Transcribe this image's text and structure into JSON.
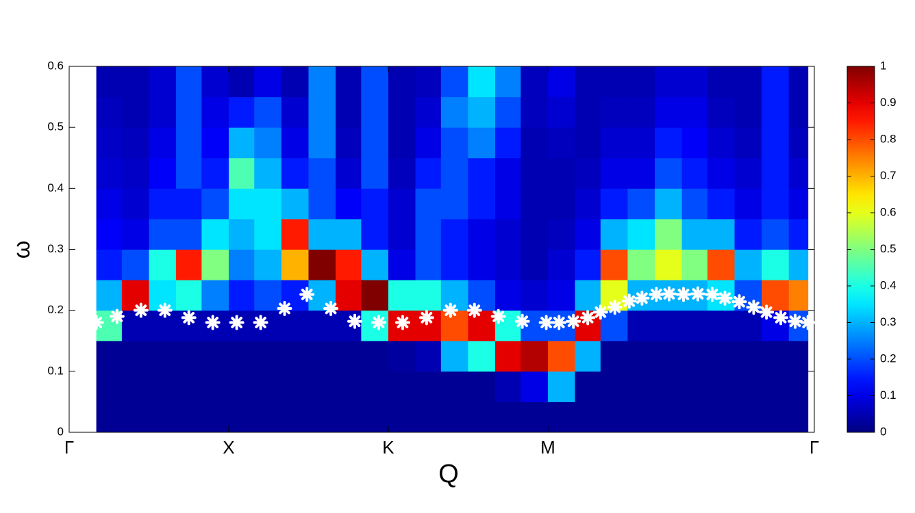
{
  "chart_data": {
    "type": "heatmap",
    "xlabel": "Q",
    "ylabel": "ω",
    "xlim": [
      0,
      4.67
    ],
    "xticks": [
      {
        "value": 0,
        "label": "Γ"
      },
      {
        "value": 1,
        "label": "X"
      },
      {
        "value": 2,
        "label": "K"
      },
      {
        "value": 3,
        "label": "M"
      },
      {
        "value": 4.67,
        "label": "Γ"
      }
    ],
    "ylim": [
      0,
      0.6
    ],
    "yticks": [
      0,
      0.1,
      0.2,
      0.3,
      0.4,
      0.5,
      0.6
    ],
    "clim": [
      0,
      1
    ],
    "cticks": [
      0,
      0.1,
      0.2,
      0.3,
      0.4,
      0.5,
      0.6,
      0.7,
      0.8,
      0.9,
      1
    ],
    "colormap": "jet",
    "x_edges": [
      0.17,
      0.33,
      0.5,
      0.67,
      0.83,
      1.0,
      1.16,
      1.33,
      1.5,
      1.67,
      1.83,
      2.0,
      2.17,
      2.33,
      2.5,
      2.67,
      2.83,
      3.0,
      3.17,
      3.33,
      3.5,
      3.67,
      3.84,
      4.0,
      4.17,
      4.34,
      4.51,
      4.63
    ],
    "y_edges": [
      0,
      0.05,
      0.1,
      0.15,
      0.2,
      0.25,
      0.3,
      0.35,
      0.4,
      0.45,
      0.5,
      0.55,
      0.6
    ],
    "z": [
      [
        0.02,
        0.02,
        0.02,
        0.45,
        0.3,
        0.15,
        0.12,
        0.1,
        0.08,
        0.07,
        0.06,
        0.05
      ],
      [
        0.02,
        0.02,
        0.02,
        0.05,
        0.9,
        0.2,
        0.1,
        0.08,
        0.07,
        0.06,
        0.05,
        0.05
      ],
      [
        0.02,
        0.02,
        0.02,
        0.05,
        0.35,
        0.4,
        0.2,
        0.15,
        0.12,
        0.1,
        0.08,
        0.08
      ],
      [
        0.02,
        0.02,
        0.02,
        0.05,
        0.4,
        0.85,
        0.2,
        0.15,
        0.2,
        0.2,
        0.2,
        0.2
      ],
      [
        0.02,
        0.02,
        0.02,
        0.05,
        0.25,
        0.5,
        0.35,
        0.2,
        0.15,
        0.12,
        0.1,
        0.08
      ],
      [
        0.02,
        0.02,
        0.02,
        0.05,
        0.15,
        0.25,
        0.3,
        0.35,
        0.45,
        0.3,
        0.15,
        0.05
      ],
      [
        0.02,
        0.02,
        0.02,
        0.05,
        0.2,
        0.3,
        0.35,
        0.35,
        0.3,
        0.25,
        0.2,
        0.1
      ],
      [
        0.02,
        0.02,
        0.02,
        0.05,
        0.15,
        0.7,
        0.85,
        0.3,
        0.15,
        0.1,
        0.08,
        0.05
      ],
      [
        0.02,
        0.02,
        0.02,
        0.05,
        0.3,
        1,
        0.3,
        0.2,
        0.2,
        0.25,
        0.25,
        0.25
      ],
      [
        0.02,
        0.02,
        0.02,
        0.05,
        0.9,
        0.85,
        0.3,
        0.12,
        0.08,
        0.06,
        0.05,
        0.05
      ],
      [
        0.02,
        0.02,
        0.02,
        0.4,
        1,
        0.3,
        0.15,
        0.15,
        0.2,
        0.2,
        0.2,
        0.2
      ],
      [
        0.02,
        0.02,
        0.03,
        0.9,
        0.4,
        0.1,
        0.08,
        0.08,
        0.06,
        0.05,
        0.05,
        0.05
      ],
      [
        0.02,
        0.02,
        0.05,
        0.9,
        0.4,
        0.2,
        0.2,
        0.2,
        0.15,
        0.1,
        0.08,
        0.06
      ],
      [
        0.02,
        0.02,
        0.3,
        0.8,
        0.3,
        0.15,
        0.15,
        0.2,
        0.2,
        0.2,
        0.25,
        0.2
      ],
      [
        0.02,
        0.02,
        0.4,
        0.9,
        0.2,
        0.1,
        0.1,
        0.15,
        0.15,
        0.25,
        0.3,
        0.35
      ],
      [
        0.02,
        0.05,
        0.9,
        0.4,
        0.1,
        0.08,
        0.08,
        0.1,
        0.1,
        0.15,
        0.2,
        0.25
      ],
      [
        0.02,
        0.1,
        0.95,
        0.2,
        0.08,
        0.05,
        0.05,
        0.05,
        0.05,
        0.05,
        0.06,
        0.06
      ],
      [
        0.02,
        0.3,
        0.8,
        0.2,
        0.1,
        0.08,
        0.06,
        0.05,
        0.05,
        0.06,
        0.08,
        0.1
      ],
      [
        0.02,
        0.02,
        0.3,
        0.9,
        0.3,
        0.15,
        0.1,
        0.08,
        0.06,
        0.05,
        0.05,
        0.05
      ],
      [
        0.02,
        0.02,
        0.02,
        0.2,
        0.6,
        0.8,
        0.3,
        0.15,
        0.1,
        0.08,
        0.06,
        0.05
      ],
      [
        0.02,
        0.02,
        0.02,
        0.05,
        0.3,
        0.5,
        0.35,
        0.2,
        0.1,
        0.08,
        0.06,
        0.05
      ],
      [
        0.02,
        0.02,
        0.02,
        0.05,
        0.3,
        0.6,
        0.5,
        0.3,
        0.2,
        0.15,
        0.1,
        0.08
      ],
      [
        0.02,
        0.02,
        0.02,
        0.05,
        0.3,
        0.5,
        0.3,
        0.2,
        0.15,
        0.12,
        0.1,
        0.08
      ],
      [
        0.02,
        0.02,
        0.02,
        0.05,
        0.35,
        0.8,
        0.3,
        0.15,
        0.1,
        0.08,
        0.06,
        0.05
      ],
      [
        0.02,
        0.02,
        0.02,
        0.05,
        0.2,
        0.3,
        0.15,
        0.1,
        0.08,
        0.06,
        0.05,
        0.05
      ],
      [
        0.02,
        0.02,
        0.02,
        0.1,
        0.8,
        0.4,
        0.2,
        0.15,
        0.15,
        0.15,
        0.15,
        0.15
      ],
      [
        0.02,
        0.02,
        0.02,
        0.2,
        0.75,
        0.3,
        0.15,
        0.1,
        0.08,
        0.06,
        0.05,
        0.05
      ]
    ],
    "series": [
      {
        "color": "#ffffff",
        "x": [
          0.17,
          0.3,
          0.45,
          0.6,
          0.75,
          0.9,
          1.05,
          1.2,
          1.35,
          1.49,
          1.64,
          1.79,
          1.94,
          2.09,
          2.24,
          2.39,
          2.54,
          2.69,
          2.84,
          2.99,
          3.07,
          3.16,
          3.25,
          3.33,
          3.42,
          3.51,
          3.59,
          3.68,
          3.76,
          3.85,
          3.94,
          4.03,
          4.11,
          4.2,
          4.29,
          4.37,
          4.46,
          4.55,
          4.63
        ],
        "values": [
          0.18,
          0.19,
          0.2,
          0.2,
          0.188,
          0.18,
          0.18,
          0.18,
          0.203,
          0.226,
          0.203,
          0.182,
          0.18,
          0.18,
          0.188,
          0.2,
          0.2,
          0.19,
          0.182,
          0.18,
          0.18,
          0.182,
          0.188,
          0.197,
          0.205,
          0.215,
          0.22,
          0.226,
          0.227,
          0.226,
          0.227,
          0.226,
          0.22,
          0.214,
          0.205,
          0.197,
          0.188,
          0.182,
          0.18
        ]
      }
    ]
  }
}
